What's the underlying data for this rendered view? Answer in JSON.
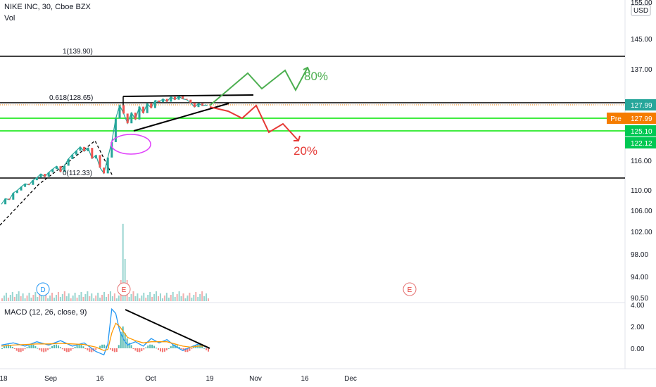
{
  "header": {
    "symbol_line": "NIKE INC, 30, Cboe BZX",
    "volume_label": "Vol",
    "currency": "USD"
  },
  "chart_data": [
    {
      "type": "line",
      "name": "price",
      "y_axis_ticks": [
        {
          "label": "155.00",
          "value": 155
        },
        {
          "label": "145.00",
          "value": 145
        },
        {
          "label": "137.00",
          "value": 137
        },
        {
          "label": "116.00",
          "value": 116
        },
        {
          "label": "110.00",
          "value": 110
        },
        {
          "label": "106.00",
          "value": 106
        },
        {
          "label": "102.00",
          "value": 102
        },
        {
          "label": "98.00",
          "value": 98
        },
        {
          "label": "94.00",
          "value": 94
        },
        {
          "label": "90.50",
          "value": 90.5
        }
      ],
      "price_badges": [
        {
          "label": "127.99",
          "value": 127.99,
          "color": "#26a69a"
        },
        {
          "label": "127.99",
          "value": 127.99,
          "color": "#f57c00",
          "tag": "Pre"
        },
        {
          "label": "125.10",
          "value": 125.1,
          "color": "#00c853"
        },
        {
          "label": "122.12",
          "value": 122.12,
          "color": "#00c853"
        }
      ],
      "x_axis_ticks": [
        "18",
        "Sep",
        "16",
        "Oct",
        "19",
        "Nov",
        "16",
        "Dec"
      ],
      "fibonacci": [
        {
          "label": "1(139.90)",
          "value": 139.9
        },
        {
          "label": "0.618(128.65)",
          "value": 128.65
        },
        {
          "label": "0(112.33)",
          "value": 112.33
        }
      ],
      "support_lines": [
        125.1,
        122.12
      ],
      "scenarios": [
        {
          "label": "80%",
          "color": "#4caf50"
        },
        {
          "label": "20%",
          "color": "#e53935"
        }
      ],
      "events": [
        "D",
        "E",
        "E"
      ],
      "price_path": [
        [
          0,
          107.2
        ],
        [
          1,
          108.3
        ],
        [
          2,
          108.1
        ],
        [
          3,
          109.4
        ],
        [
          4,
          109.9
        ],
        [
          5,
          110.6
        ],
        [
          6,
          111.2
        ],
        [
          7,
          111.0
        ],
        [
          8,
          111.9
        ],
        [
          9,
          112.4
        ],
        [
          10,
          113.2
        ],
        [
          11,
          112.6
        ],
        [
          12,
          113.5
        ],
        [
          13,
          114.2
        ],
        [
          14,
          114.8
        ],
        [
          15,
          113.6
        ],
        [
          16,
          114.9
        ],
        [
          17,
          116.3
        ],
        [
          18,
          117.2
        ],
        [
          19,
          118.0
        ],
        [
          20,
          118.8
        ],
        [
          21,
          117.9
        ],
        [
          22,
          118.6
        ],
        [
          23,
          116.4
        ],
        [
          24,
          117.1
        ],
        [
          25,
          114.5
        ],
        [
          26,
          113.3
        ],
        [
          27,
          116.6
        ],
        [
          28,
          119.8
        ],
        [
          29,
          125.0
        ],
        [
          30,
          127.9
        ],
        [
          31,
          126.1
        ],
        [
          32,
          123.9
        ],
        [
          33,
          126.3
        ],
        [
          34,
          124.8
        ],
        [
          35,
          127.6
        ],
        [
          36,
          126.2
        ],
        [
          37,
          128.4
        ],
        [
          38,
          127.3
        ],
        [
          39,
          129.2
        ],
        [
          40,
          128.8
        ],
        [
          41,
          129.6
        ],
        [
          42,
          128.9
        ],
        [
          43,
          130.1
        ],
        [
          44,
          129.4
        ],
        [
          45,
          130.2
        ],
        [
          46,
          129.6
        ],
        [
          47,
          129.4
        ],
        [
          48,
          128.6
        ],
        [
          49,
          127.5
        ],
        [
          50,
          128.4
        ],
        [
          51,
          127.8
        ],
        [
          52,
          127.99
        ]
      ]
    },
    {
      "type": "bar",
      "name": "volume"
    },
    {
      "type": "line",
      "title": "MACD (12, 26, close, 9)",
      "y_axis_ticks": [
        {
          "label": "4.00",
          "value": 4
        },
        {
          "label": "2.00",
          "value": 2
        },
        {
          "label": "0.00",
          "value": 0
        }
      ],
      "macd_path": [
        [
          0,
          0.3
        ],
        [
          3,
          0.5
        ],
        [
          6,
          0.2
        ],
        [
          9,
          0.6
        ],
        [
          12,
          0.3
        ],
        [
          15,
          0.7
        ],
        [
          18,
          0.2
        ],
        [
          21,
          0.5
        ],
        [
          24,
          -0.3
        ],
        [
          26,
          -0.6
        ],
        [
          27,
          0.4
        ],
        [
          28,
          3.6
        ],
        [
          29,
          3.2
        ],
        [
          30,
          1.6
        ],
        [
          31,
          0.8
        ],
        [
          32,
          0.3
        ],
        [
          34,
          0.6
        ],
        [
          36,
          0.2
        ],
        [
          38,
          0.9
        ],
        [
          40,
          0.5
        ],
        [
          42,
          0.8
        ],
        [
          44,
          0.2
        ],
        [
          46,
          -0.2
        ],
        [
          48,
          0.1
        ],
        [
          50,
          0.4
        ],
        [
          52,
          0.1
        ]
      ],
      "signal_path": [
        [
          0,
          0.2
        ],
        [
          3,
          0.3
        ],
        [
          6,
          0.35
        ],
        [
          9,
          0.4
        ],
        [
          12,
          0.4
        ],
        [
          15,
          0.45
        ],
        [
          18,
          0.4
        ],
        [
          21,
          0.35
        ],
        [
          24,
          0.1
        ],
        [
          26,
          -0.2
        ],
        [
          27,
          -0.1
        ],
        [
          28,
          1.4
        ],
        [
          29,
          2.3
        ],
        [
          30,
          2.0
        ],
        [
          31,
          1.5
        ],
        [
          32,
          1.0
        ],
        [
          34,
          0.7
        ],
        [
          36,
          0.5
        ],
        [
          38,
          0.6
        ],
        [
          40,
          0.6
        ],
        [
          42,
          0.6
        ],
        [
          44,
          0.4
        ],
        [
          46,
          0.2
        ],
        [
          48,
          0.1
        ],
        [
          50,
          0.2
        ],
        [
          52,
          0.2
        ]
      ]
    }
  ]
}
